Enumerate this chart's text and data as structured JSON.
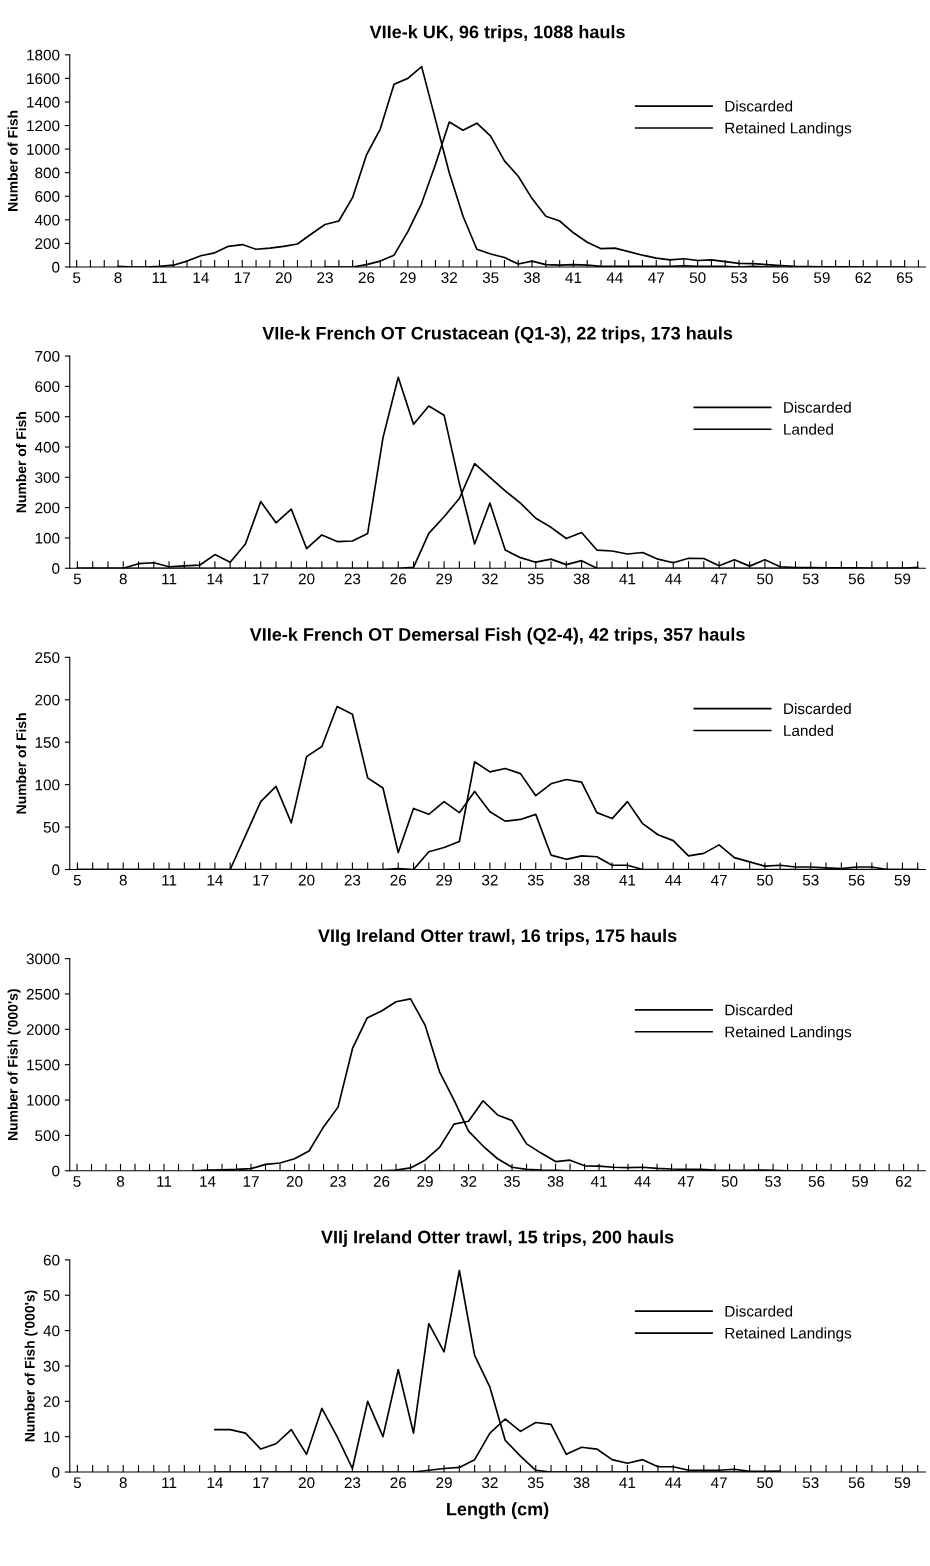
{
  "chart_data": [
    {
      "type": "line",
      "title": "VIIe-k UK, 96 trips, 1088 hauls",
      "ylabel": "Number of Fish",
      "legend": "top right",
      "grid": false,
      "ylim": [
        0,
        1800
      ],
      "yticks": [
        0,
        200,
        400,
        600,
        800,
        1000,
        1200,
        1400,
        1600,
        1800
      ],
      "categories": [
        "5",
        null,
        null,
        "8",
        null,
        null,
        "11",
        null,
        null,
        "14",
        null,
        null,
        "17",
        null,
        null,
        "20",
        null,
        null,
        "23",
        null,
        null,
        "26",
        null,
        null,
        "29",
        null,
        null,
        "32",
        null,
        null,
        "35",
        null,
        null,
        "38",
        null,
        null,
        "41",
        null,
        null,
        "44",
        null,
        null,
        "47",
        null,
        null,
        "50",
        null,
        null,
        "53",
        null,
        null,
        "56",
        null,
        null,
        "59",
        null,
        null,
        "62",
        null,
        null,
        "65",
        null
      ],
      "series": [
        {
          "name": "Discarded",
          "color": "#000000",
          "values": [
            null,
            null,
            null,
            5,
            0,
            0,
            5,
            15,
            50,
            95,
            120,
            175,
            190,
            150,
            160,
            175,
            195,
            280,
            360,
            390,
            590,
            950,
            1170,
            1550,
            1600,
            1700,
            1250,
            800,
            430,
            150,
            110,
            80,
            25,
            50,
            20,
            15,
            20,
            15,
            5,
            5,
            5,
            5,
            5,
            5,
            10,
            5,
            5,
            5,
            0,
            5,
            0,
            0,
            null,
            null,
            null,
            null,
            null,
            null,
            null,
            null,
            null,
            null
          ]
        },
        {
          "name": "Retained Landings",
          "color": "#000000",
          "values": [
            null,
            null,
            null,
            null,
            null,
            null,
            null,
            null,
            null,
            null,
            null,
            null,
            null,
            null,
            null,
            null,
            null,
            null,
            0,
            0,
            0,
            20,
            50,
            100,
            300,
            540,
            870,
            1230,
            1160,
            1220,
            1110,
            900,
            770,
            580,
            430,
            390,
            290,
            210,
            155,
            160,
            130,
            100,
            75,
            60,
            70,
            55,
            60,
            45,
            30,
            28,
            20,
            12,
            5,
            3,
            2,
            2,
            1,
            0,
            0,
            0,
            0,
            null
          ]
        }
      ]
    },
    {
      "type": "line",
      "title": "VIIe-k French OT Crustacean (Q1-3), 22 trips, 173 hauls",
      "ylabel": "Number of Fish",
      "legend": "top right",
      "grid": false,
      "ylim": [
        0,
        700
      ],
      "yticks": [
        0,
        100,
        200,
        300,
        400,
        500,
        600,
        700
      ],
      "categories": [
        "5",
        null,
        null,
        "8",
        null,
        null,
        "11",
        null,
        null,
        "14",
        null,
        null,
        "17",
        null,
        null,
        "20",
        null,
        null,
        "23",
        null,
        null,
        "26",
        null,
        null,
        "29",
        null,
        null,
        "32",
        null,
        null,
        "35",
        null,
        null,
        "38",
        null,
        null,
        "41",
        null,
        null,
        "44",
        null,
        null,
        "47",
        null,
        null,
        "50",
        null,
        null,
        "53",
        null,
        null,
        "56",
        null,
        null,
        "59",
        null
      ],
      "series": [
        {
          "name": "Discarded",
          "color": "#000000",
          "values": [
            0,
            0,
            0,
            0,
            15,
            18,
            5,
            8,
            10,
            45,
            20,
            80,
            220,
            150,
            195,
            65,
            110,
            88,
            90,
            115,
            430,
            630,
            475,
            535,
            505,
            280,
            80,
            215,
            60,
            35,
            20,
            30,
            12,
            25,
            0,
            0,
            0,
            0,
            0,
            0,
            0,
            0,
            0,
            0,
            0,
            0,
            0,
            0,
            0,
            0,
            0,
            0,
            0,
            0,
            0,
            0
          ]
        },
        {
          "name": "Landed",
          "color": "#000000",
          "values": [
            0,
            0,
            0,
            0,
            0,
            0,
            0,
            0,
            0,
            0,
            0,
            0,
            0,
            0,
            0,
            0,
            0,
            0,
            0,
            0,
            0,
            0,
            3,
            115,
            170,
            230,
            345,
            300,
            255,
            215,
            165,
            135,
            98,
            118,
            60,
            57,
            47,
            52,
            30,
            18,
            33,
            32,
            8,
            28,
            7,
            28,
            5,
            2,
            2,
            1,
            1,
            1,
            0,
            0,
            0,
            3
          ]
        }
      ]
    },
    {
      "type": "line",
      "title": "VIIe-k French OT Demersal Fish (Q2-4), 42 trips, 357 hauls",
      "ylabel": "Number of Fish",
      "legend": "top right",
      "grid": false,
      "ylim": [
        0,
        250
      ],
      "yticks": [
        0,
        50,
        100,
        150,
        200,
        250
      ],
      "categories": [
        "5",
        null,
        null,
        "8",
        null,
        null,
        "11",
        null,
        null,
        "14",
        null,
        null,
        "17",
        null,
        null,
        "20",
        null,
        null,
        "23",
        null,
        null,
        "26",
        null,
        null,
        "29",
        null,
        null,
        "32",
        null,
        null,
        "35",
        null,
        null,
        "38",
        null,
        null,
        "41",
        null,
        null,
        "44",
        null,
        null,
        "47",
        null,
        null,
        "50",
        null,
        null,
        "53",
        null,
        null,
        "56",
        null,
        null,
        "59",
        null
      ],
      "series": [
        {
          "name": "Discarded",
          "color": "#000000",
          "values": [
            0,
            0,
            0,
            0,
            0,
            0,
            0,
            0,
            0,
            0,
            0,
            40,
            80,
            98,
            55,
            133,
            145,
            192,
            183,
            108,
            96,
            20,
            72,
            65,
            80,
            67,
            92,
            68,
            57,
            59,
            65,
            17,
            12,
            16,
            15,
            5,
            5,
            0,
            0,
            0,
            0,
            0,
            0,
            0,
            0,
            0,
            0,
            0,
            0,
            0,
            0,
            0,
            0,
            0,
            0,
            0
          ]
        },
        {
          "name": "Landed",
          "color": "#000000",
          "values": [
            0,
            0,
            0,
            0,
            0,
            0,
            0,
            0,
            0,
            0,
            0,
            0,
            0,
            0,
            0,
            0,
            0,
            0,
            0,
            0,
            0,
            1,
            0,
            21,
            26,
            33,
            127,
            115,
            119,
            113,
            87,
            101,
            106,
            103,
            67,
            60,
            80,
            54,
            41,
            34,
            16,
            19,
            29,
            14,
            9,
            4,
            5,
            3,
            3,
            2,
            1,
            3,
            3,
            0,
            0,
            0
          ]
        }
      ]
    },
    {
      "type": "line",
      "title": "VIIg Ireland Otter trawl, 16 trips, 175 hauls",
      "ylabel": "Number of Fish ('000's)",
      "legend": "top right",
      "grid": false,
      "ylim": [
        0,
        3000
      ],
      "yticks": [
        0,
        500,
        1000,
        1500,
        2000,
        2500,
        3000
      ],
      "categories": [
        "5",
        null,
        null,
        "8",
        null,
        null,
        "11",
        null,
        null,
        "14",
        null,
        null,
        "17",
        null,
        null,
        "20",
        null,
        null,
        "23",
        null,
        null,
        "26",
        null,
        null,
        "29",
        null,
        null,
        "32",
        null,
        null,
        "35",
        null,
        null,
        "38",
        null,
        null,
        "41",
        null,
        null,
        "44",
        null,
        null,
        "47",
        null,
        null,
        "50",
        null,
        null,
        "53",
        null,
        null,
        "56",
        null,
        null,
        "59",
        null,
        null,
        "62",
        null
      ],
      "series": [
        {
          "name": "Discarded",
          "color": "#000000",
          "values": [
            null,
            null,
            null,
            null,
            null,
            null,
            null,
            null,
            0,
            10,
            15,
            20,
            30,
            90,
            110,
            170,
            280,
            620,
            900,
            1730,
            2160,
            2260,
            2390,
            2430,
            2060,
            1400,
            1000,
            560,
            350,
            170,
            50,
            20,
            10,
            5,
            0,
            0,
            0,
            0,
            0,
            0,
            0,
            0,
            0,
            0,
            0,
            0,
            0,
            0,
            0,
            0,
            0,
            0,
            0,
            0,
            0,
            0,
            null,
            null,
            null
          ]
        },
        {
          "name": "Retained Landings",
          "color": "#000000",
          "values": [
            null,
            null,
            null,
            null,
            null,
            null,
            null,
            null,
            0,
            0,
            0,
            0,
            0,
            0,
            0,
            0,
            0,
            0,
            0,
            0,
            0,
            0,
            10,
            40,
            150,
            330,
            660,
            700,
            990,
            790,
            710,
            380,
            250,
            130,
            150,
            70,
            65,
            50,
            45,
            50,
            35,
            25,
            20,
            20,
            10,
            5,
            5,
            10,
            5,
            0,
            0,
            0,
            0,
            0,
            0,
            0,
            null,
            null,
            null
          ]
        }
      ]
    },
    {
      "type": "line",
      "title": "VIIj Ireland Otter trawl, 15 trips, 200 hauls",
      "ylabel": "Number of Fish ('000's)",
      "xlabel": "Length (cm)",
      "legend": "top right",
      "grid": false,
      "ylim": [
        0,
        60
      ],
      "yticks": [
        0,
        10,
        20,
        30,
        40,
        50,
        60
      ],
      "categories": [
        "5",
        null,
        null,
        "8",
        null,
        null,
        "11",
        null,
        null,
        "14",
        null,
        null,
        "17",
        null,
        null,
        "20",
        null,
        null,
        "23",
        null,
        null,
        "26",
        null,
        null,
        "29",
        null,
        null,
        "32",
        null,
        null,
        "35",
        null,
        null,
        "38",
        null,
        null,
        "41",
        null,
        null,
        "44",
        null,
        null,
        "47",
        null,
        null,
        "50",
        null,
        null,
        "53",
        null,
        null,
        "56",
        null,
        null,
        "59",
        null
      ],
      "series": [
        {
          "name": "Discarded",
          "color": "#000000",
          "values": [
            null,
            null,
            null,
            null,
            null,
            null,
            null,
            null,
            null,
            12,
            12,
            11,
            6.5,
            8,
            12,
            5,
            18,
            10,
            1,
            20,
            10,
            29,
            11,
            42,
            34,
            57,
            33,
            24,
            9,
            4.5,
            0.5,
            0,
            0,
            0,
            0,
            0,
            0,
            0,
            0,
            0,
            0,
            0,
            0,
            0,
            0,
            0,
            0,
            null,
            null,
            null,
            null,
            null,
            null,
            null,
            null,
            null
          ]
        },
        {
          "name": "Retained Landings",
          "color": "#000000",
          "values": [
            null,
            null,
            null,
            null,
            null,
            null,
            null,
            null,
            null,
            0,
            0,
            0,
            0,
            0,
            0,
            0,
            0,
            0,
            0,
            0,
            0,
            0,
            0,
            0.5,
            1,
            1.3,
            3.5,
            11,
            15,
            11.5,
            14,
            13.5,
            5,
            7,
            6.5,
            3.5,
            2.5,
            3.5,
            1.5,
            1.5,
            0.5,
            0.5,
            0.5,
            0.8,
            0.2,
            0.2,
            0.3,
            null,
            null,
            null,
            null,
            null,
            null,
            null,
            null,
            null
          ]
        }
      ]
    }
  ]
}
